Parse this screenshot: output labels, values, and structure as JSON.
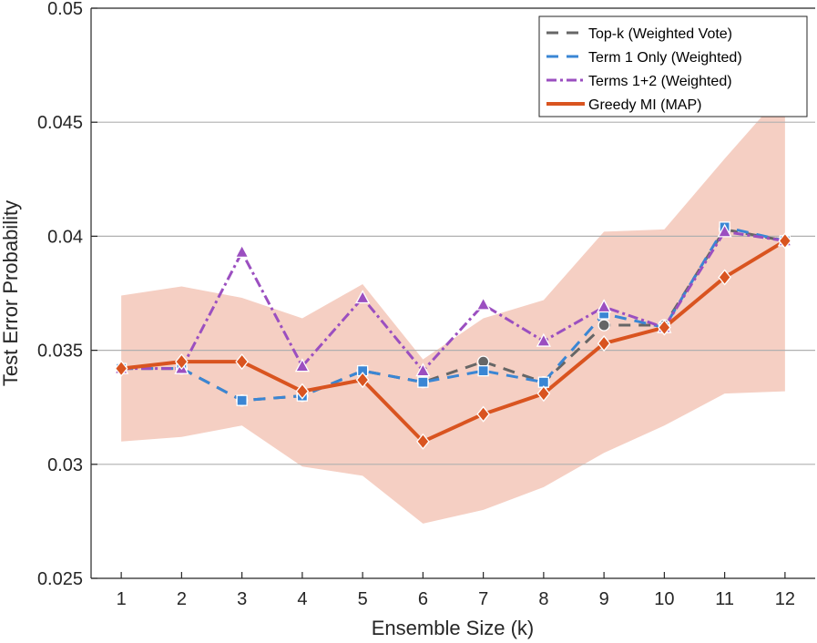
{
  "chart_data": {
    "type": "line",
    "title": "",
    "xlabel": "Ensemble Size (k)",
    "ylabel": "Test Error Probability",
    "x": [
      1,
      2,
      3,
      4,
      5,
      6,
      7,
      8,
      9,
      10,
      11,
      12
    ],
    "xlim": [
      0.5,
      12.5
    ],
    "ylim": [
      0.025,
      0.05
    ],
    "xticks": [
      "1",
      "2",
      "3",
      "4",
      "5",
      "6",
      "7",
      "8",
      "9",
      "10",
      "11",
      "12"
    ],
    "yticks": [
      0.025,
      0.03,
      0.035,
      0.04,
      0.045,
      0.05
    ],
    "ytick_labels": [
      "0.025",
      "0.03",
      "0.035",
      "0.04",
      "0.045",
      "0.05"
    ],
    "grid": "horizontal",
    "legend_position": "top-right",
    "band": {
      "series": "Greedy MI (MAP)",
      "color": "#f5cfc3",
      "upper": [
        0.0374,
        0.0378,
        0.0373,
        0.0364,
        0.0379,
        0.0346,
        0.0364,
        0.0372,
        0.0402,
        0.0403,
        0.0434,
        0.0464
      ],
      "lower": [
        0.031,
        0.0312,
        0.0317,
        0.0299,
        0.0295,
        0.0274,
        0.028,
        0.029,
        0.0305,
        0.0317,
        0.0331,
        0.0332
      ]
    },
    "series": [
      {
        "name": "Top-k (Weighted Vote)",
        "color": "#666666",
        "dash": "13,9",
        "marker": "circle",
        "values": [
          0.0342,
          0.0342,
          0.0328,
          0.033,
          0.0341,
          0.0336,
          0.0345,
          0.0336,
          0.0361,
          0.0361,
          0.0403,
          0.0398
        ]
      },
      {
        "name": "Term 1 Only (Weighted)",
        "color": "#3a86d4",
        "dash": "13,9",
        "marker": "square",
        "values": [
          0.0342,
          0.0342,
          0.0328,
          0.033,
          0.0341,
          0.0336,
          0.0341,
          0.0336,
          0.0366,
          0.036,
          0.0404,
          0.0398
        ]
      },
      {
        "name": "Terms 1+2 (Weighted)",
        "color": "#9b4fc0",
        "dash": "11,4,3,4",
        "marker": "triangle",
        "values": [
          0.0342,
          0.0342,
          0.0393,
          0.0343,
          0.0373,
          0.0341,
          0.037,
          0.0354,
          0.0369,
          0.036,
          0.0402,
          0.0398
        ]
      },
      {
        "name": "Greedy MI (MAP)",
        "color": "#d95420",
        "dash": "",
        "marker": "diamond",
        "values": [
          0.0342,
          0.0345,
          0.0345,
          0.0332,
          0.0337,
          0.031,
          0.0322,
          0.0331,
          0.0353,
          0.036,
          0.0382,
          0.0398
        ]
      }
    ]
  }
}
